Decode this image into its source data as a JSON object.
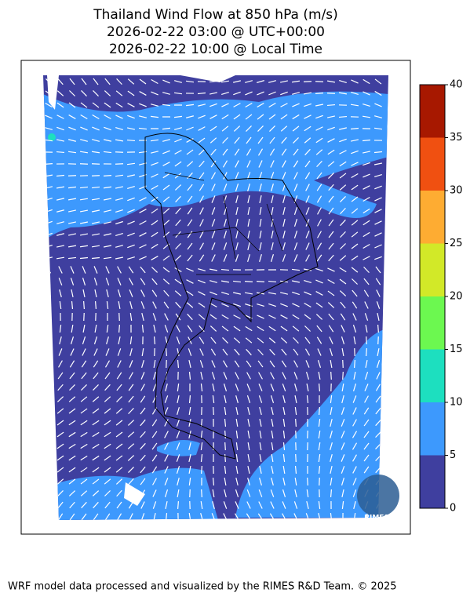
{
  "header": {
    "title_lines": [
      "Thailand Wind Flow at 850 hPa (m/s)",
      "2026-02-22 03:00 @ UTC+00:00",
      "2026-02-22 10:00 @ Local Time"
    ]
  },
  "colorbar": {
    "ticks": [
      0,
      5,
      10,
      15,
      20,
      25,
      30,
      35,
      40
    ],
    "colors": [
      "#3f3f9f",
      "#3d99fd",
      "#1ddfbf",
      "#6cf850",
      "#d2e928",
      "#feac32",
      "#f05011",
      "#a71800"
    ]
  },
  "logo": {
    "text": "RIMES"
  },
  "footer": {
    "text": "WRF model data processed and visualized by the RIMES R&D Team. © 2025"
  }
}
